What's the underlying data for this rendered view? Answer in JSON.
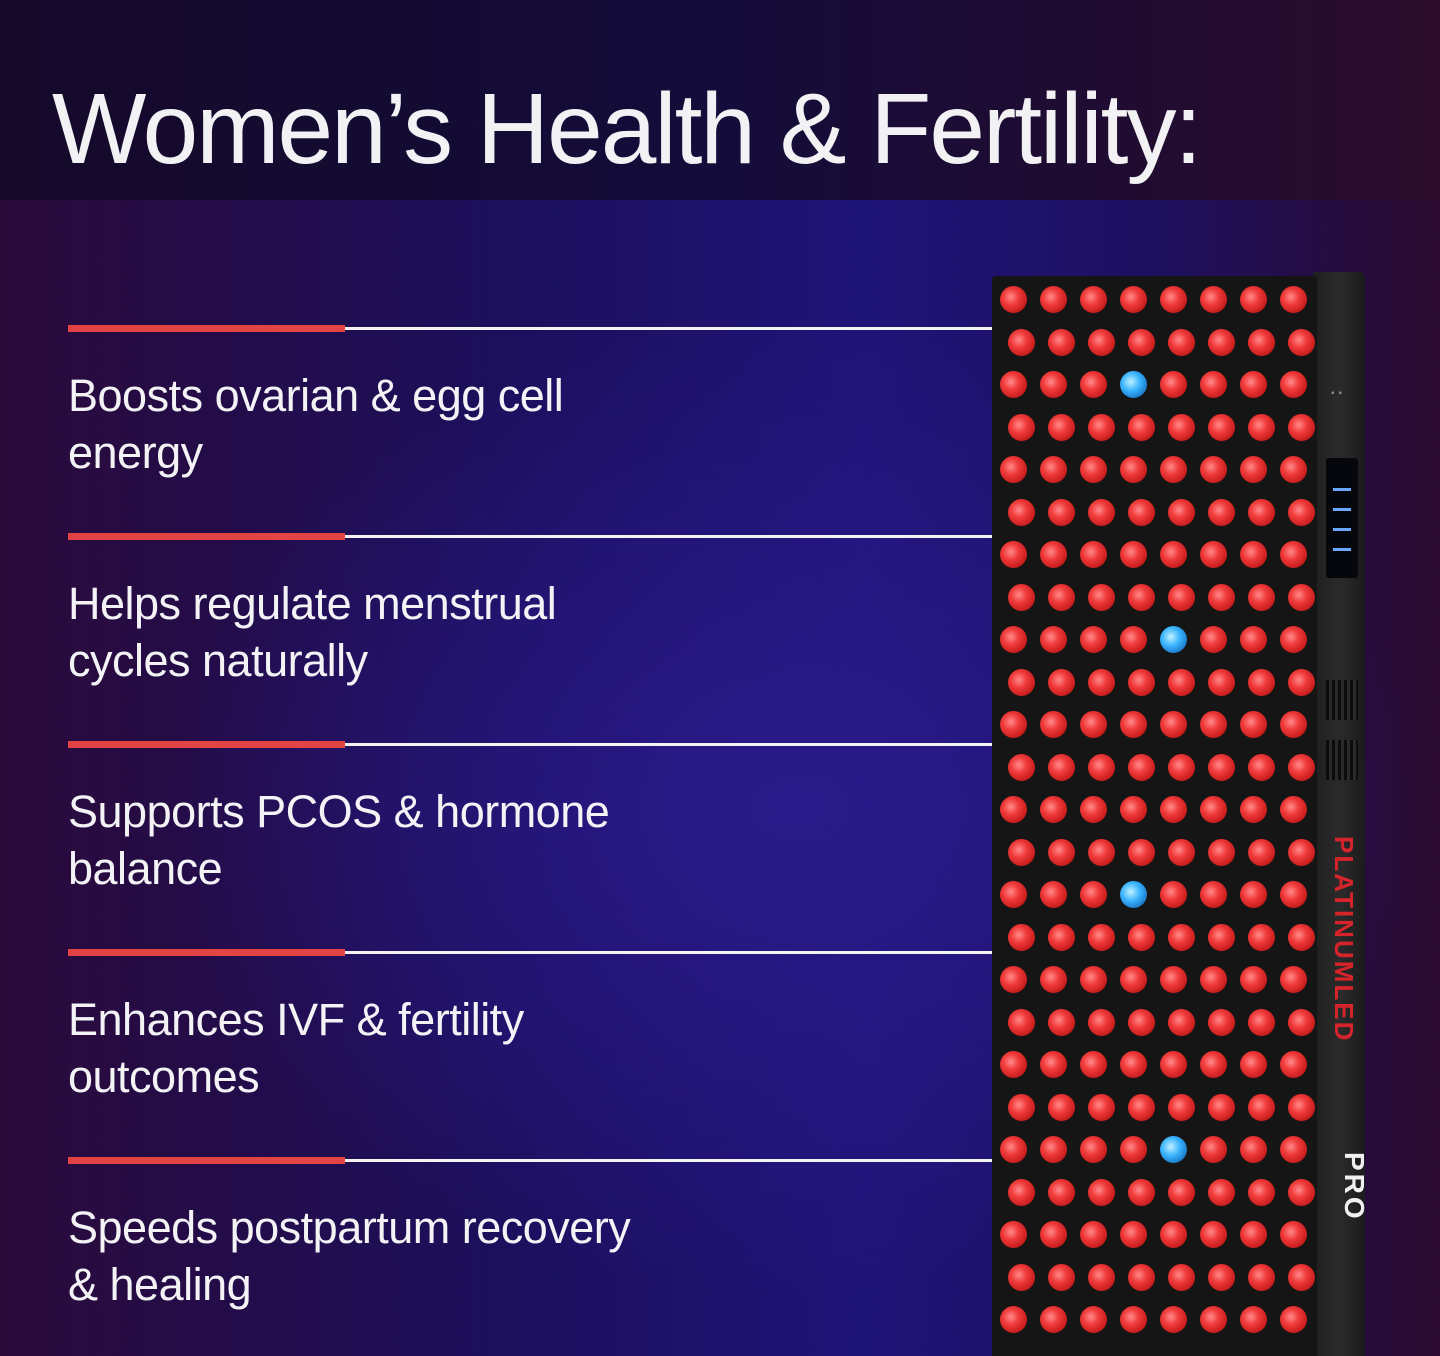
{
  "title": "Women’s Health & Fertility:",
  "benefits": [
    {
      "text": "Boosts ovarian & egg cell energy"
    },
    {
      "text": "Helps regulate menstrual cycles naturally"
    },
    {
      "text": "Supports PCOS & hormone balance"
    },
    {
      "text": "Enhances IVF & fertility outcomes"
    },
    {
      "text": "Speeds postpartum recovery & healing"
    }
  ],
  "device": {
    "brand": "PLATINUMLED",
    "model": "PRO",
    "led_colors": {
      "red": "#e8333b",
      "blue": "#3ab4ff"
    }
  },
  "colors": {
    "accent_red": "#e24343",
    "rule_white": "#f4f4f4",
    "background": "#1f1478"
  }
}
